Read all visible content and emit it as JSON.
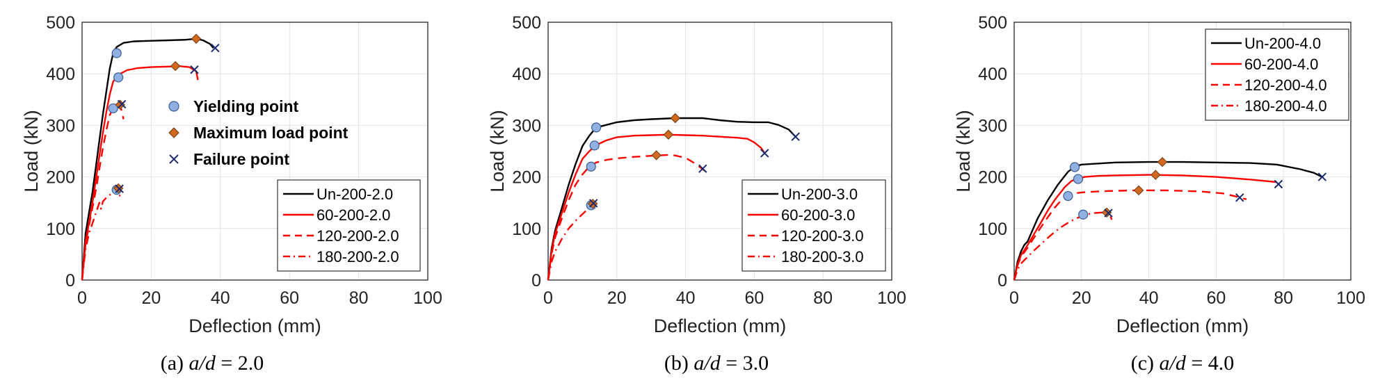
{
  "chart_data": [
    {
      "type": "line",
      "caption": {
        "prefix": "(a) ",
        "var": "a/d",
        "rest": " = 2.0"
      },
      "xlabel": "Deflection (mm)",
      "ylabel": "Load (kN)",
      "xlim": [
        0,
        100
      ],
      "ylim": [
        0,
        500
      ],
      "xticks": [
        "0",
        "20",
        "40",
        "60",
        "80",
        "100"
      ],
      "yticks": [
        "0",
        "100",
        "200",
        "300",
        "400",
        "500"
      ],
      "grid": true,
      "legend": "bottom-right",
      "series": [
        {
          "name": "Un-200-2.0",
          "style": "solid",
          "color": "#000000",
          "x": [
            0,
            1,
            2,
            3,
            4,
            5,
            6,
            7,
            8,
            9,
            10,
            12,
            15,
            20,
            25,
            30,
            33,
            35,
            37,
            38
          ],
          "y": [
            0,
            90,
            130,
            170,
            220,
            270,
            320,
            365,
            410,
            440,
            452,
            460,
            463,
            464,
            465,
            466,
            468,
            465,
            458,
            450
          ],
          "yield": [
            10,
            440
          ],
          "max": [
            33,
            468
          ],
          "fail": [
            38.5,
            450
          ]
        },
        {
          "name": "60-200-2.0",
          "style": "solid",
          "color": "#ff0000",
          "x": [
            0,
            1,
            2,
            3,
            4,
            5,
            6,
            7,
            8,
            9,
            10,
            11,
            13,
            16,
            20,
            25,
            28,
            31,
            33,
            33.5
          ],
          "y": [
            0,
            75,
            110,
            150,
            195,
            240,
            285,
            325,
            360,
            385,
            393,
            400,
            407,
            411,
            413,
            414,
            415,
            413,
            405,
            388
          ],
          "yield": [
            10.5,
            393
          ],
          "max": [
            27,
            415
          ],
          "fail": [
            32.5,
            408
          ]
        },
        {
          "name": "120-200-2.0",
          "style": "dashed",
          "color": "#ff0000",
          "x": [
            0,
            1,
            2,
            3,
            4,
            5,
            6,
            7,
            8,
            9,
            10,
            11,
            12
          ],
          "y": [
            0,
            70,
            105,
            140,
            175,
            215,
            255,
            290,
            320,
            333,
            338,
            340,
            312
          ],
          "yield": [
            9,
            333
          ],
          "max": [
            11,
            340
          ],
          "fail": [
            11.5,
            341
          ]
        },
        {
          "name": "180-200-2.0",
          "style": "dashdot",
          "color": "#ff0000",
          "x": [
            0,
            1,
            2,
            3,
            4,
            5,
            5.5,
            6,
            7,
            8,
            9,
            10,
            10.5,
            11
          ],
          "y": [
            0,
            60,
            90,
            110,
            130,
            150,
            138,
            152,
            160,
            165,
            172,
            176,
            178,
            160
          ],
          "yield": [
            10,
            175
          ],
          "max": [
            10.5,
            178
          ],
          "fail": [
            10.8,
            177
          ]
        }
      ],
      "marker_legend": [
        "Yielding point",
        "Maximum load point",
        "Failure point"
      ]
    },
    {
      "type": "line",
      "caption": {
        "prefix": "(b) ",
        "var": "a/d",
        "rest": " = 3.0"
      },
      "xlabel": "Deflection (mm)",
      "ylabel": "Load (kN)",
      "xlim": [
        0,
        100
      ],
      "ylim": [
        0,
        500
      ],
      "xticks": [
        "0",
        "20",
        "40",
        "60",
        "80",
        "100"
      ],
      "yticks": [
        "0",
        "100",
        "200",
        "300",
        "400",
        "500"
      ],
      "grid": true,
      "legend": "bottom-right",
      "series": [
        {
          "name": "Un-200-3.0",
          "style": "solid",
          "color": "#000000",
          "x": [
            0,
            1,
            2,
            4,
            6,
            8,
            10,
            12,
            14,
            17,
            20,
            25,
            30,
            37,
            45,
            50,
            55,
            60,
            64,
            67,
            70,
            72
          ],
          "y": [
            0,
            60,
            95,
            140,
            185,
            225,
            260,
            280,
            296,
            301,
            306,
            310,
            312,
            314,
            314,
            310,
            307,
            306,
            306,
            301,
            292,
            278
          ],
          "yield": [
            14,
            296
          ],
          "max": [
            37,
            314
          ],
          "fail": [
            72,
            278
          ]
        },
        {
          "name": "60-200-3.0",
          "style": "solid",
          "color": "#ff0000",
          "x": [
            0,
            1,
            2,
            4,
            6,
            8,
            10,
            12,
            14,
            17,
            20,
            25,
            30,
            35,
            40,
            45,
            50,
            55,
            58,
            60,
            62,
            63
          ],
          "y": [
            0,
            55,
            90,
            130,
            170,
            205,
            235,
            250,
            262,
            271,
            277,
            280,
            281,
            282,
            281,
            280,
            278,
            276,
            274,
            267,
            256,
            246
          ],
          "yield": [
            13.5,
            261
          ],
          "max": [
            35,
            282
          ],
          "fail": [
            63,
            246
          ]
        },
        {
          "name": "120-200-3.0",
          "style": "dashed",
          "color": "#ff0000",
          "x": [
            0,
            1,
            2,
            4,
            6,
            8,
            10,
            12,
            14,
            17,
            20,
            25,
            30,
            33,
            36,
            40,
            43,
            45,
            47
          ],
          "y": [
            0,
            50,
            82,
            120,
            155,
            185,
            205,
            220,
            228,
            233,
            236,
            239,
            241,
            242,
            243,
            237,
            225,
            215,
            205
          ],
          "yield": [
            12.5,
            220
          ],
          "max": [
            31.5,
            242
          ],
          "fail": [
            45,
            216
          ]
        },
        {
          "name": "180-200-3.0",
          "style": "dashdot",
          "color": "#ff0000",
          "x": [
            0,
            1,
            2,
            4,
            6,
            8,
            10,
            12,
            12.8,
            13.2,
            13.5
          ],
          "y": [
            0,
            35,
            55,
            80,
            100,
            115,
            128,
            140,
            148,
            145,
            138
          ],
          "yield": [
            12.5,
            145
          ],
          "max": [
            13,
            148
          ],
          "fail": [
            13.2,
            149
          ]
        }
      ]
    },
    {
      "type": "line",
      "caption": {
        "prefix": "(c) ",
        "var": "a/d",
        "rest": " = 4.0"
      },
      "xlabel": "Deflection (mm)",
      "ylabel": "Load (kN)",
      "xlim": [
        0,
        100
      ],
      "ylim": [
        0,
        500
      ],
      "xticks": [
        "0",
        "20",
        "40",
        "60",
        "80",
        "100"
      ],
      "yticks": [
        "0",
        "100",
        "200",
        "300",
        "400",
        "500"
      ],
      "grid": true,
      "legend": "top-right",
      "series": [
        {
          "name": "Un-200-4.0",
          "style": "solid",
          "color": "#000000",
          "x": [
            0,
            1,
            2,
            3,
            4,
            5,
            7,
            10,
            13,
            16,
            18,
            20,
            25,
            30,
            40,
            50,
            60,
            70,
            78,
            85,
            89,
            91.5
          ],
          "y": [
            0,
            35,
            55,
            68,
            75,
            90,
            120,
            155,
            185,
            210,
            220,
            224,
            226,
            228,
            229,
            229,
            228,
            227,
            224,
            215,
            208,
            200
          ],
          "yield": [
            18,
            219
          ],
          "max": [
            44,
            229
          ],
          "fail": [
            91.5,
            200
          ]
        },
        {
          "name": "60-200-4.0",
          "style": "solid",
          "color": "#ff0000",
          "x": [
            0,
            1,
            2,
            4,
            6,
            8,
            10,
            12,
            15,
            17,
            19,
            21,
            25,
            30,
            40,
            50,
            60,
            70,
            78
          ],
          "y": [
            0,
            30,
            48,
            68,
            90,
            112,
            135,
            155,
            180,
            192,
            197,
            200,
            202,
            203,
            204,
            203,
            200,
            195,
            190
          ],
          "yield": [
            19,
            196
          ],
          "max": [
            42,
            204
          ],
          "fail": [
            78.5,
            186
          ]
        },
        {
          "name": "120-200-4.0",
          "style": "dashed",
          "color": "#ff0000",
          "x": [
            0,
            1,
            2,
            4,
            6,
            8,
            10,
            12,
            14,
            16,
            18,
            20,
            25,
            30,
            37,
            45,
            55,
            62,
            66,
            68,
            69
          ],
          "y": [
            0,
            28,
            45,
            63,
            83,
            103,
            122,
            140,
            155,
            163,
            168,
            170,
            172,
            173,
            174,
            174,
            172,
            168,
            162,
            158,
            157
          ],
          "yield": [
            16,
            163
          ],
          "max": [
            37,
            174
          ],
          "fail": [
            67,
            160
          ]
        },
        {
          "name": "180-200-4.0",
          "style": "dashdot",
          "color": "#ff0000",
          "x": [
            0,
            1,
            2,
            4,
            6,
            8,
            10,
            12,
            14,
            16,
            18,
            20,
            22,
            24,
            26,
            27.5,
            28.5,
            29
          ],
          "y": [
            0,
            20,
            32,
            45,
            58,
            70,
            82,
            93,
            103,
            111,
            118,
            124,
            128,
            130,
            131,
            131,
            125,
            117
          ],
          "yield": [
            20.5,
            127
          ],
          "max": [
            27.5,
            131
          ],
          "fail": [
            28,
            130
          ]
        }
      ]
    }
  ]
}
